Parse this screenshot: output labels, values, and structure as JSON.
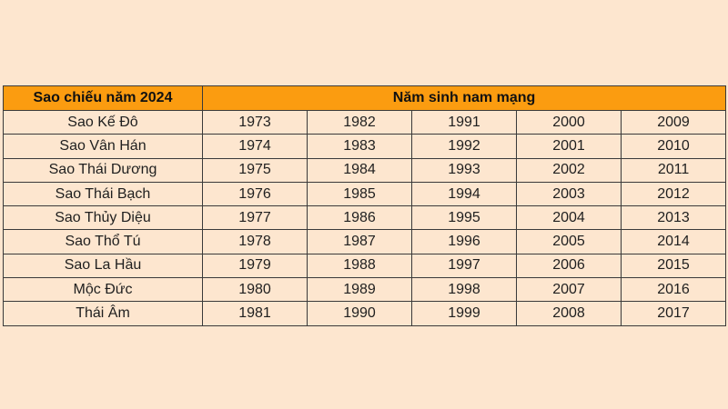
{
  "table": {
    "header_star": "Sao chiếu năm 2024",
    "header_years": "Năm sinh nam mạng",
    "rows": [
      {
        "star": "Sao Kế Đô",
        "years": [
          "1973",
          "1982",
          "1991",
          "2000",
          "2009"
        ]
      },
      {
        "star": "Sao Vân Hán",
        "years": [
          "1974",
          "1983",
          "1992",
          "2001",
          "2010"
        ]
      },
      {
        "star": "Sao Thái Dương",
        "years": [
          "1975",
          "1984",
          "1993",
          "2002",
          "2011"
        ]
      },
      {
        "star": "Sao Thái Bạch",
        "years": [
          "1976",
          "1985",
          "1994",
          "2003",
          "2012"
        ]
      },
      {
        "star": "Sao Thủy Diệu",
        "years": [
          "1977",
          "1986",
          "1995",
          "2004",
          "2013"
        ]
      },
      {
        "star": "Sao Thổ Tú",
        "years": [
          "1978",
          "1987",
          "1996",
          "2005",
          "2014"
        ]
      },
      {
        "star": "Sao La Hầu",
        "years": [
          "1979",
          "1988",
          "1997",
          "2006",
          "2015"
        ]
      },
      {
        "star": "Mộc Đức",
        "years": [
          "1980",
          "1989",
          "1998",
          "2007",
          "2016"
        ]
      },
      {
        "star": "Thái Âm",
        "years": [
          "1981",
          "1990",
          "1999",
          "2008",
          "2017"
        ]
      }
    ]
  },
  "colors": {
    "background": "#fde6cf",
    "header_fill": "#fb9c10",
    "border": "#3a3a3a"
  }
}
